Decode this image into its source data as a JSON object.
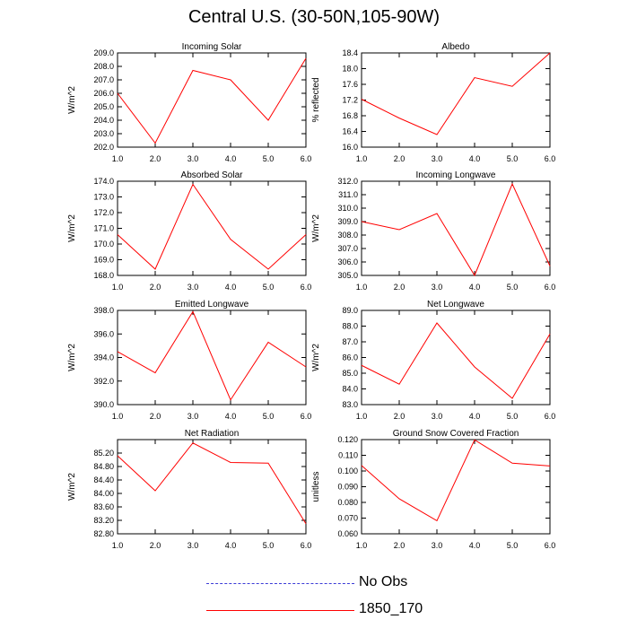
{
  "title": "Central U.S. (30-50N,105-90W)",
  "legend": [
    {
      "label": "No Obs",
      "color": "#3b3bd6",
      "style": "dashed"
    },
    {
      "label": "1850_170",
      "color": "#ff0000",
      "style": "solid"
    }
  ],
  "chart_data": [
    {
      "type": "line",
      "title": "Incoming Solar",
      "ylabel": "W/m^2",
      "xlabel": "",
      "x": [
        1,
        2,
        3,
        4,
        5,
        6
      ],
      "xlim": [
        1,
        6
      ],
      "xticks": [
        "1.0",
        "2.0",
        "3.0",
        "4.0",
        "5.0",
        "6.0"
      ],
      "ylim": [
        202,
        209
      ],
      "yticks": [
        "202.0",
        "203.0",
        "204.0",
        "205.0",
        "206.0",
        "207.0",
        "208.0",
        "209.0"
      ],
      "series": [
        {
          "name": "1850_170",
          "color": "#ff0000",
          "values": [
            206.0,
            202.3,
            207.7,
            207.0,
            204.0,
            208.6
          ]
        }
      ]
    },
    {
      "type": "line",
      "title": "Albedo",
      "ylabel": "% reflected",
      "xlabel": "",
      "x": [
        1,
        2,
        3,
        4,
        5,
        6
      ],
      "xlim": [
        1,
        6
      ],
      "xticks": [
        "1.0",
        "2.0",
        "3.0",
        "4.0",
        "5.0",
        "6.0"
      ],
      "ylim": [
        16.0,
        18.4
      ],
      "yticks": [
        "16.0",
        "16.4",
        "16.8",
        "17.2",
        "17.6",
        "18.0",
        "18.4"
      ],
      "series": [
        {
          "name": "1850_170",
          "color": "#ff0000",
          "values": [
            17.22,
            16.74,
            16.32,
            17.77,
            17.55,
            18.4
          ]
        }
      ]
    },
    {
      "type": "line",
      "title": "Absorbed Solar",
      "ylabel": "W/m^2",
      "xlabel": "",
      "x": [
        1,
        2,
        3,
        4,
        5,
        6
      ],
      "xlim": [
        1,
        6
      ],
      "xticks": [
        "1.0",
        "2.0",
        "3.0",
        "4.0",
        "5.0",
        "6.0"
      ],
      "ylim": [
        168,
        174
      ],
      "yticks": [
        "168.0",
        "169.0",
        "170.0",
        "171.0",
        "172.0",
        "173.0",
        "174.0"
      ],
      "series": [
        {
          "name": "1850_170",
          "color": "#ff0000",
          "values": [
            170.6,
            168.4,
            173.8,
            170.3,
            168.4,
            170.6
          ]
        }
      ]
    },
    {
      "type": "line",
      "title": "Incoming Longwave",
      "ylabel": "W/m^2",
      "xlabel": "",
      "x": [
        1,
        2,
        3,
        4,
        5,
        6
      ],
      "xlim": [
        1,
        6
      ],
      "xticks": [
        "1.0",
        "2.0",
        "3.0",
        "4.0",
        "5.0",
        "6.0"
      ],
      "ylim": [
        305,
        312
      ],
      "yticks": [
        "305.0",
        "306.0",
        "307.0",
        "308.0",
        "309.0",
        "310.0",
        "311.0",
        "312.0"
      ],
      "series": [
        {
          "name": "1850_170",
          "color": "#ff0000",
          "values": [
            309.0,
            308.4,
            309.6,
            305.0,
            311.8,
            305.7
          ]
        }
      ]
    },
    {
      "type": "line",
      "title": "Emitted Longwave",
      "ylabel": "W/m^2",
      "xlabel": "",
      "x": [
        1,
        2,
        3,
        4,
        5,
        6
      ],
      "xlim": [
        1,
        6
      ],
      "xticks": [
        "1.0",
        "2.0",
        "3.0",
        "4.0",
        "5.0",
        "6.0"
      ],
      "ylim": [
        390,
        398
      ],
      "yticks": [
        "390.0",
        "392.0",
        "394.0",
        "396.0",
        "398.0"
      ],
      "series": [
        {
          "name": "1850_170",
          "color": "#ff0000",
          "values": [
            394.5,
            392.7,
            397.9,
            390.4,
            395.3,
            393.2
          ]
        }
      ]
    },
    {
      "type": "line",
      "title": "Net Longwave",
      "ylabel": "W/m^2",
      "xlabel": "",
      "x": [
        1,
        2,
        3,
        4,
        5,
        6
      ],
      "xlim": [
        1,
        6
      ],
      "xticks": [
        "1.0",
        "2.0",
        "3.0",
        "4.0",
        "5.0",
        "6.0"
      ],
      "ylim": [
        83,
        89
      ],
      "yticks": [
        "83.0",
        "84.0",
        "85.0",
        "86.0",
        "87.0",
        "88.0",
        "89.0"
      ],
      "series": [
        {
          "name": "1850_170",
          "color": "#ff0000",
          "values": [
            85.5,
            84.3,
            88.2,
            85.4,
            83.4,
            87.5
          ]
        }
      ]
    },
    {
      "type": "line",
      "title": "Net Radiation",
      "ylabel": "W/m^2",
      "xlabel": "",
      "x": [
        1,
        2,
        3,
        4,
        5,
        6
      ],
      "xlim": [
        1,
        6
      ],
      "xticks": [
        "1.0",
        "2.0",
        "3.0",
        "4.0",
        "5.0",
        "6.0"
      ],
      "ylim": [
        82.8,
        85.6
      ],
      "yticks": [
        "82.80",
        "83.20",
        "83.60",
        "84.00",
        "84.40",
        "84.80",
        "85.20"
      ],
      "series": [
        {
          "name": "1850_170",
          "color": "#ff0000",
          "values": [
            85.12,
            84.08,
            85.5,
            84.92,
            84.9,
            83.1
          ]
        }
      ]
    },
    {
      "type": "line",
      "title": "Ground Snow Covered Fraction",
      "ylabel": "unitless",
      "xlabel": "",
      "x": [
        1,
        2,
        3,
        4,
        5,
        6
      ],
      "xlim": [
        1,
        6
      ],
      "xticks": [
        "1.0",
        "2.0",
        "3.0",
        "4.0",
        "5.0",
        "6.0"
      ],
      "ylim": [
        0.06,
        0.12
      ],
      "yticks": [
        "0.060",
        "0.070",
        "0.080",
        "0.090",
        "0.100",
        "0.110",
        "0.120"
      ],
      "series": [
        {
          "name": "1850_170",
          "color": "#ff0000",
          "values": [
            0.1035,
            0.0823,
            0.0683,
            0.1198,
            0.105,
            0.1032
          ]
        }
      ]
    }
  ]
}
